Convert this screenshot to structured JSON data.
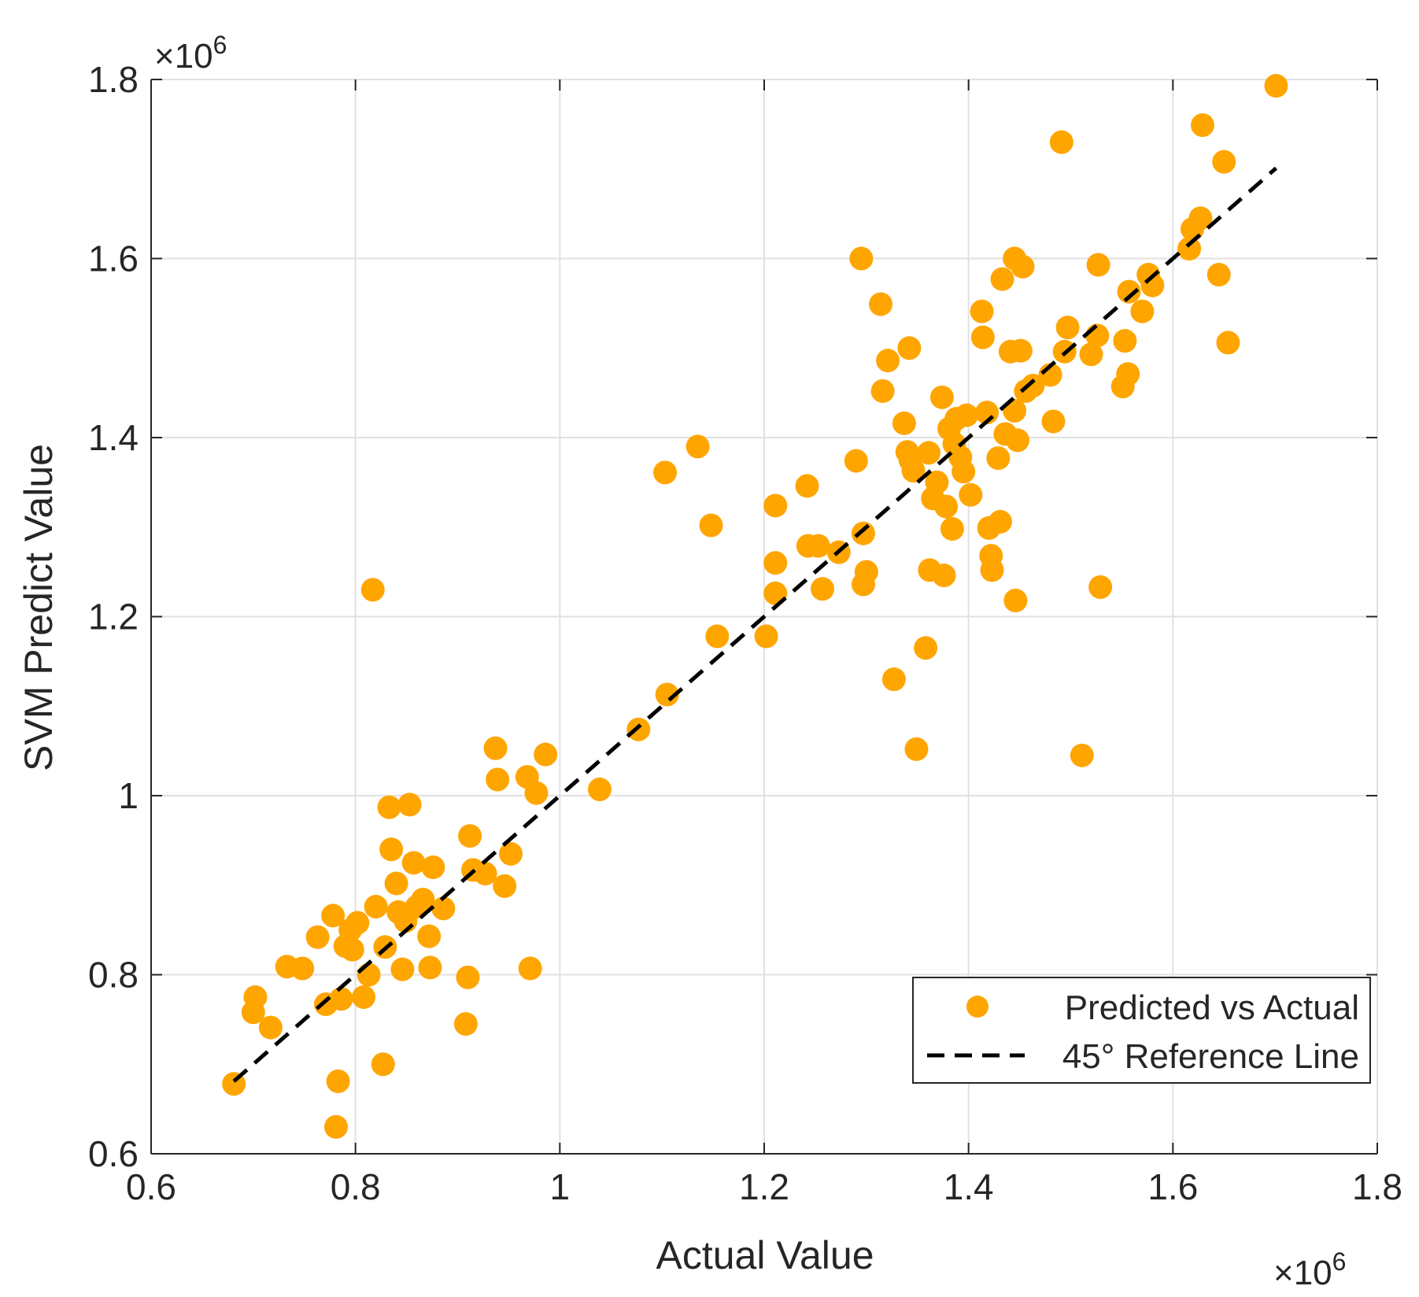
{
  "chart_data": {
    "type": "scatter",
    "xlabel": "Actual Value",
    "ylabel": "SVM Predict Value",
    "xlim": [
      600000,
      1800000
    ],
    "ylim": [
      600000,
      1800000
    ],
    "xticks": [
      600000,
      800000,
      1000000,
      1200000,
      1400000,
      1600000,
      1800000
    ],
    "yticks": [
      600000,
      800000,
      1000000,
      1200000,
      1400000,
      1600000,
      1800000
    ],
    "xtick_labels": [
      "0.6",
      "0.8",
      "1",
      "1.2",
      "1.4",
      "1.6",
      "1.8"
    ],
    "ytick_labels": [
      "0.6",
      "0.8",
      "1",
      "1.2",
      "1.4",
      "1.6",
      "1.8"
    ],
    "x_exponent": {
      "times": "×10",
      "power": "6"
    },
    "y_exponent": {
      "times": "×10",
      "power": "6"
    },
    "grid": true,
    "legend_position": "bottom-right",
    "series": [
      {
        "name": "Predicted vs Actual",
        "kind": "scatter",
        "color": "#FFA500",
        "points": [
          [
            681000,
            678000
          ],
          [
            702000,
            775000
          ],
          [
            700000,
            758000
          ],
          [
            717000,
            741000
          ],
          [
            733000,
            809000
          ],
          [
            748000,
            807000
          ],
          [
            763000,
            842000
          ],
          [
            771000,
            767000
          ],
          [
            778000,
            866000
          ],
          [
            781000,
            630000
          ],
          [
            783000,
            681000
          ],
          [
            786000,
            773000
          ],
          [
            790000,
            832000
          ],
          [
            795000,
            850000
          ],
          [
            797000,
            828000
          ],
          [
            802000,
            858000
          ],
          [
            808000,
            775000
          ],
          [
            813000,
            800000
          ],
          [
            817000,
            1230000
          ],
          [
            820000,
            876000
          ],
          [
            827000,
            700000
          ],
          [
            829000,
            831000
          ],
          [
            833000,
            987000
          ],
          [
            835000,
            940000
          ],
          [
            840000,
            902000
          ],
          [
            842000,
            870000
          ],
          [
            846000,
            806000
          ],
          [
            849000,
            860000
          ],
          [
            853000,
            990000
          ],
          [
            857000,
            925000
          ],
          [
            860000,
            876000
          ],
          [
            866000,
            884000
          ],
          [
            872000,
            843000
          ],
          [
            873000,
            808000
          ],
          [
            876000,
            920000
          ],
          [
            886000,
            874000
          ],
          [
            908000,
            745000
          ],
          [
            910000,
            797000
          ],
          [
            912000,
            955000
          ],
          [
            915000,
            917000
          ],
          [
            927000,
            913000
          ],
          [
            937000,
            1053000
          ],
          [
            939000,
            1018000
          ],
          [
            946000,
            899000
          ],
          [
            952000,
            935000
          ],
          [
            968000,
            1021000
          ],
          [
            971000,
            807000
          ],
          [
            977000,
            1003000
          ],
          [
            986000,
            1046000
          ],
          [
            1039000,
            1007000
          ],
          [
            1077000,
            1074000
          ],
          [
            1103000,
            1361000
          ],
          [
            1105000,
            1113000
          ],
          [
            1135000,
            1390000
          ],
          [
            1148000,
            1302000
          ],
          [
            1154000,
            1178000
          ],
          [
            1202000,
            1178000
          ],
          [
            1211000,
            1324000
          ],
          [
            1211000,
            1226000
          ],
          [
            1211000,
            1260000
          ],
          [
            1242000,
            1346000
          ],
          [
            1243000,
            1279000
          ],
          [
            1253000,
            1279000
          ],
          [
            1257000,
            1231000
          ],
          [
            1273000,
            1272000
          ],
          [
            1290000,
            1374000
          ],
          [
            1295000,
            1600000
          ],
          [
            1297000,
            1293000
          ],
          [
            1297000,
            1236000
          ],
          [
            1300000,
            1250000
          ],
          [
            1314000,
            1549000
          ],
          [
            1316000,
            1452000
          ],
          [
            1321000,
            1486000
          ],
          [
            1327000,
            1130000
          ],
          [
            1337000,
            1416000
          ],
          [
            1342000,
            1500000
          ],
          [
            1340000,
            1384000
          ],
          [
            1343000,
            1375000
          ],
          [
            1346000,
            1363000
          ],
          [
            1349000,
            1052000
          ],
          [
            1358000,
            1165000
          ],
          [
            1361000,
            1383000
          ],
          [
            1362000,
            1252000
          ],
          [
            1365000,
            1332000
          ],
          [
            1369000,
            1350000
          ],
          [
            1374000,
            1445000
          ],
          [
            1376000,
            1246000
          ],
          [
            1378000,
            1323000
          ],
          [
            1381000,
            1410000
          ],
          [
            1384000,
            1298000
          ],
          [
            1386000,
            1393000
          ],
          [
            1388000,
            1421000
          ],
          [
            1392000,
            1378000
          ],
          [
            1395000,
            1362000
          ],
          [
            1398000,
            1425000
          ],
          [
            1402000,
            1336000
          ],
          [
            1413000,
            1541000
          ],
          [
            1414000,
            1512000
          ],
          [
            1418000,
            1428000
          ],
          [
            1420000,
            1299000
          ],
          [
            1422000,
            1268000
          ],
          [
            1423000,
            1252000
          ],
          [
            1431000,
            1306000
          ],
          [
            1429000,
            1377000
          ],
          [
            1433000,
            1577000
          ],
          [
            1436000,
            1404000
          ],
          [
            1441000,
            1496000
          ],
          [
            1445000,
            1600000
          ],
          [
            1445000,
            1430000
          ],
          [
            1446000,
            1218000
          ],
          [
            1448000,
            1397000
          ],
          [
            1451000,
            1497000
          ],
          [
            1453000,
            1591000
          ],
          [
            1456000,
            1452000
          ],
          [
            1463000,
            1458000
          ],
          [
            1480000,
            1470000
          ],
          [
            1483000,
            1418000
          ],
          [
            1491000,
            1730000
          ],
          [
            1494000,
            1496000
          ],
          [
            1497000,
            1523000
          ],
          [
            1511000,
            1045000
          ],
          [
            1520000,
            1493000
          ],
          [
            1526000,
            1514000
          ],
          [
            1527000,
            1593000
          ],
          [
            1529000,
            1233000
          ],
          [
            1551000,
            1457000
          ],
          [
            1553000,
            1508000
          ],
          [
            1556000,
            1471000
          ],
          [
            1557000,
            1563000
          ],
          [
            1570000,
            1541000
          ],
          [
            1576000,
            1582000
          ],
          [
            1580000,
            1570000
          ],
          [
            1616000,
            1611000
          ],
          [
            1619000,
            1633000
          ],
          [
            1627000,
            1645000
          ],
          [
            1629000,
            1749000
          ],
          [
            1645000,
            1582000
          ],
          [
            1650000,
            1708000
          ],
          [
            1654000,
            1506000
          ],
          [
            1701000,
            1793000
          ]
        ]
      },
      {
        "name": "45° Reference Line",
        "kind": "line",
        "style": "dashed",
        "color": "#000000",
        "points": [
          [
            681000,
            681000
          ],
          [
            1701000,
            1701000
          ]
        ]
      }
    ]
  }
}
